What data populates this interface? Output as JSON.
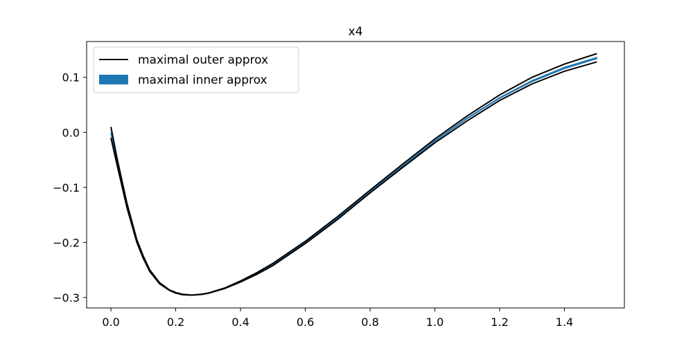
{
  "chart_data": {
    "type": "line",
    "title": "x4",
    "xlabel": "",
    "ylabel": "",
    "xlim": [
      -0.075,
      1.585
    ],
    "ylim": [
      -0.319,
      0.165
    ],
    "xticks": [
      0.0,
      0.2,
      0.4,
      0.6,
      0.8,
      1.0,
      1.2,
      1.4
    ],
    "xtick_labels": [
      "0.0",
      "0.2",
      "0.4",
      "0.6",
      "0.8",
      "1.0",
      "1.2",
      "1.4"
    ],
    "yticks": [
      -0.3,
      -0.2,
      -0.1,
      0.0,
      0.1
    ],
    "ytick_labels": [
      "−0.3",
      "−0.2",
      "−0.1",
      "0.0",
      "0.1"
    ],
    "grid": false,
    "legend_position": "top-left",
    "colors": {
      "outer": "#000000",
      "inner": "#1f77b4"
    },
    "legend": [
      {
        "label": "maximal outer approx",
        "kind": "line"
      },
      {
        "label": "maximal inner approx",
        "kind": "patch"
      }
    ],
    "x": [
      0.0,
      0.02,
      0.05,
      0.08,
      0.1,
      0.12,
      0.15,
      0.18,
      0.2,
      0.22,
      0.25,
      0.28,
      0.3,
      0.35,
      0.4,
      0.45,
      0.5,
      0.6,
      0.7,
      0.8,
      0.9,
      1.0,
      1.1,
      1.2,
      1.3,
      1.4,
      1.5
    ],
    "series": [
      {
        "role": "outer_upper",
        "values": [
          0.01,
          -0.05,
          -0.13,
          -0.195,
          -0.225,
          -0.25,
          -0.273,
          -0.286,
          -0.291,
          -0.294,
          -0.2955,
          -0.294,
          -0.292,
          -0.283,
          -0.27,
          -0.255,
          -0.238,
          -0.198,
          -0.153,
          -0.105,
          -0.058,
          -0.012,
          0.03,
          0.068,
          0.1,
          0.124,
          0.143
        ]
      },
      {
        "role": "outer_lower",
        "values": [
          -0.01,
          -0.062,
          -0.138,
          -0.2,
          -0.229,
          -0.253,
          -0.275,
          -0.287,
          -0.292,
          -0.295,
          -0.2958,
          -0.2945,
          -0.2925,
          -0.284,
          -0.272,
          -0.258,
          -0.242,
          -0.202,
          -0.158,
          -0.11,
          -0.064,
          -0.019,
          0.021,
          0.058,
          0.088,
          0.111,
          0.128
        ]
      },
      {
        "role": "inner_upper",
        "values": [
          0.0,
          -0.056,
          -0.134,
          -0.197,
          -0.227,
          -0.2515,
          -0.274,
          -0.2865,
          -0.2915,
          -0.2945,
          -0.2957,
          -0.2942,
          -0.2922,
          -0.2835,
          -0.271,
          -0.2565,
          -0.2395,
          -0.1995,
          -0.155,
          -0.1072,
          -0.0605,
          -0.0148,
          0.0265,
          0.0635,
          0.0945,
          0.1185,
          0.1365
        ]
      },
      {
        "role": "inner_lower",
        "values": [
          -0.004,
          -0.058,
          -0.136,
          -0.199,
          -0.228,
          -0.2525,
          -0.2745,
          -0.2868,
          -0.2918,
          -0.2948,
          -0.2958,
          -0.2944,
          -0.2924,
          -0.2838,
          -0.2715,
          -0.2572,
          -0.2405,
          -0.2007,
          -0.1565,
          -0.1088,
          -0.0622,
          -0.0166,
          0.0245,
          0.0615,
          0.0918,
          0.1155,
          0.1335
        ]
      }
    ]
  }
}
